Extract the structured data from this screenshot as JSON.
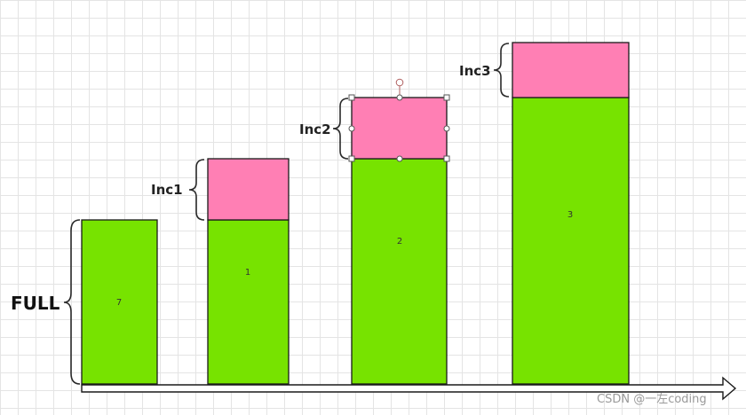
{
  "colors": {
    "full_block": "#77e300",
    "increment_block": "#ff7fb4",
    "stroke": "#1a1a1a"
  },
  "labels": {
    "full": "FULL",
    "inc1": "Inc1",
    "inc2": "Inc2",
    "inc3": "Inc3"
  },
  "blocks": {
    "bar0": "7",
    "bar1": "1",
    "bar2": "2",
    "bar3": "3"
  },
  "watermark": "CSDN @一左coding"
}
